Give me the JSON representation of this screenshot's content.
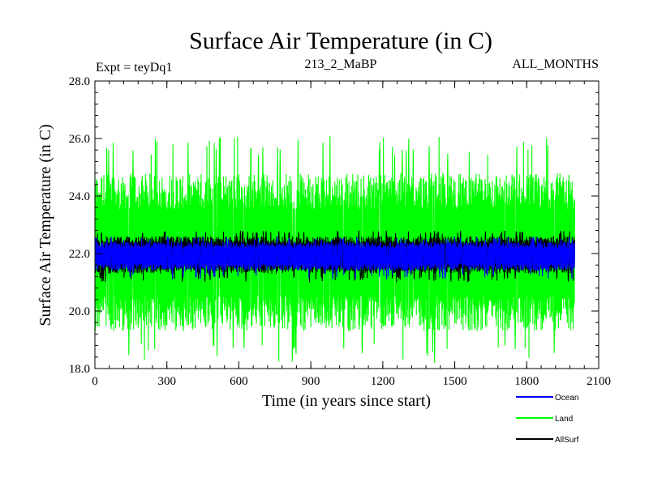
{
  "chart_data": {
    "type": "line",
    "title": "Surface Air Temperature (in C)",
    "subtitle_left": "Expt = teyDq1",
    "subtitle_center": "213_2_MaBP",
    "subtitle_right": "ALL_MONTHS",
    "xlabel": "Time (in years since start)",
    "ylabel": "Surface Air Temperature (in C)",
    "xlim": [
      0,
      2100
    ],
    "ylim": [
      18,
      28
    ],
    "x_ticks": [
      0,
      300,
      600,
      900,
      1200,
      1500,
      1800,
      2100
    ],
    "x_tick_labels": [
      "0",
      "300",
      "600",
      "900",
      "1200",
      "1500",
      "1800",
      "2100"
    ],
    "y_ticks": [
      18,
      20,
      22,
      24,
      26,
      28
    ],
    "y_tick_labels": [
      "18.0",
      "20.0",
      "22.0",
      "24.0",
      "26.0",
      "28.0"
    ],
    "x_minor_step": 60,
    "y_minor_step": 0.4,
    "data_x_range": [
      0,
      2000
    ],
    "series": [
      {
        "name": "Land",
        "color": "#00ff00",
        "mean": 22.0,
        "typical_min": 19.3,
        "typical_max": 24.8,
        "extreme_min": 18.2,
        "extreme_max": 26.1,
        "layer": 1
      },
      {
        "name": "AllSurf",
        "color": "#000000",
        "mean": 22.0,
        "typical_min": 21.3,
        "typical_max": 22.6,
        "extreme_min": 21.0,
        "extreme_max": 22.8,
        "layer": 2
      },
      {
        "name": "Ocean",
        "color": "#0000ff",
        "mean": 21.95,
        "typical_min": 21.4,
        "typical_max": 22.4,
        "extreme_min": 21.1,
        "extreme_max": 22.6,
        "layer": 3
      }
    ],
    "legend": [
      {
        "label": "Ocean",
        "color": "#0000ff"
      },
      {
        "label": "Land",
        "color": "#00ff00"
      },
      {
        "label": "AllSurf",
        "color": "#000000"
      }
    ],
    "legend_position": "bottom-right",
    "grid": false
  }
}
